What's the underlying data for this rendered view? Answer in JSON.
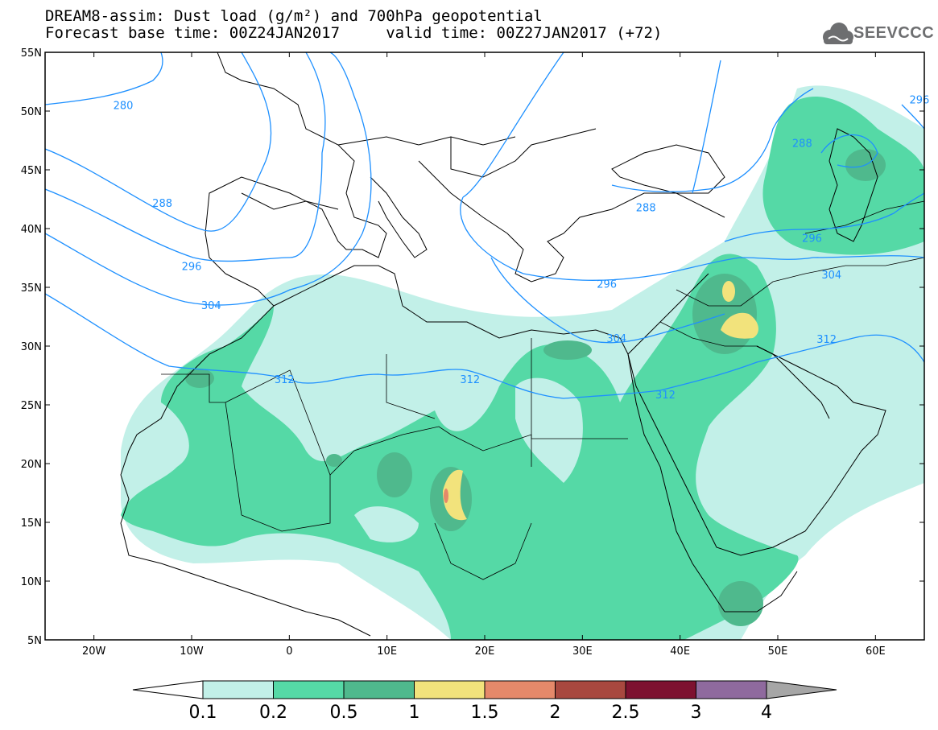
{
  "header": {
    "title_line1": "DREAM8-assim: Dust load (g/m²) and 700hPa geopotential",
    "title_line2": "Forecast base time: 00Z24JAN2017     valid time: 00Z27JAN2017 (+72)"
  },
  "logo": {
    "text": "SEEVCCC",
    "icon": "cloud-icon",
    "color": "#6d6e70"
  },
  "map": {
    "lon_range": [
      -25,
      65
    ],
    "lat_range": [
      5,
      55
    ],
    "lat_labels": [
      "55N",
      "50N",
      "45N",
      "40N",
      "35N",
      "30N",
      "25N",
      "20N",
      "15N",
      "10N",
      "5N"
    ],
    "lon_labels": [
      "20W",
      "10W",
      "0",
      "10E",
      "20E",
      "30E",
      "40E",
      "50E",
      "60E"
    ],
    "contour_color": "#1e90ff",
    "isolines": [
      {
        "value": "280",
        "label_lon": -17,
        "label_lat": 50.5
      },
      {
        "value": "288",
        "label_lon": -13,
        "label_lat": 42.2
      },
      {
        "value": "296",
        "label_lon": -10,
        "label_lat": 36.8
      },
      {
        "value": "304",
        "label_lon": -8,
        "label_lat": 33.5
      },
      {
        "value": "312",
        "label_lon": -0.5,
        "label_lat": 27.2
      },
      {
        "value": "312",
        "label_lon": 18.5,
        "label_lat": 27.2
      },
      {
        "value": "312",
        "label_lon": 38.5,
        "label_lat": 25.9
      },
      {
        "value": "304",
        "label_lon": 33.5,
        "label_lat": 30.7
      },
      {
        "value": "296",
        "label_lon": 32.5,
        "label_lat": 35.3
      },
      {
        "value": "288",
        "label_lon": 36.5,
        "label_lat": 41.8
      },
      {
        "value": "288",
        "label_lon": 52.5,
        "label_lat": 47.3
      },
      {
        "value": "296",
        "label_lon": 53.5,
        "label_lat": 39.2
      },
      {
        "value": "304",
        "label_lon": 55.5,
        "label_lat": 36.1
      },
      {
        "value": "312",
        "label_lon": 55,
        "label_lat": 30.6
      },
      {
        "value": "296",
        "label_lon": 64.5,
        "label_lat": 51
      }
    ]
  },
  "colorbar": {
    "labels": [
      "0.1",
      "0.2",
      "0.5",
      "1",
      "1.5",
      "2",
      "2.5",
      "3",
      "4"
    ],
    "colors": [
      "#c2f0e8",
      "#55d9a6",
      "#4fb98d",
      "#f2e37c",
      "#e5896a",
      "#a8483f",
      "#7d1130",
      "#8f6a9e",
      "#a6a6a6"
    ]
  }
}
